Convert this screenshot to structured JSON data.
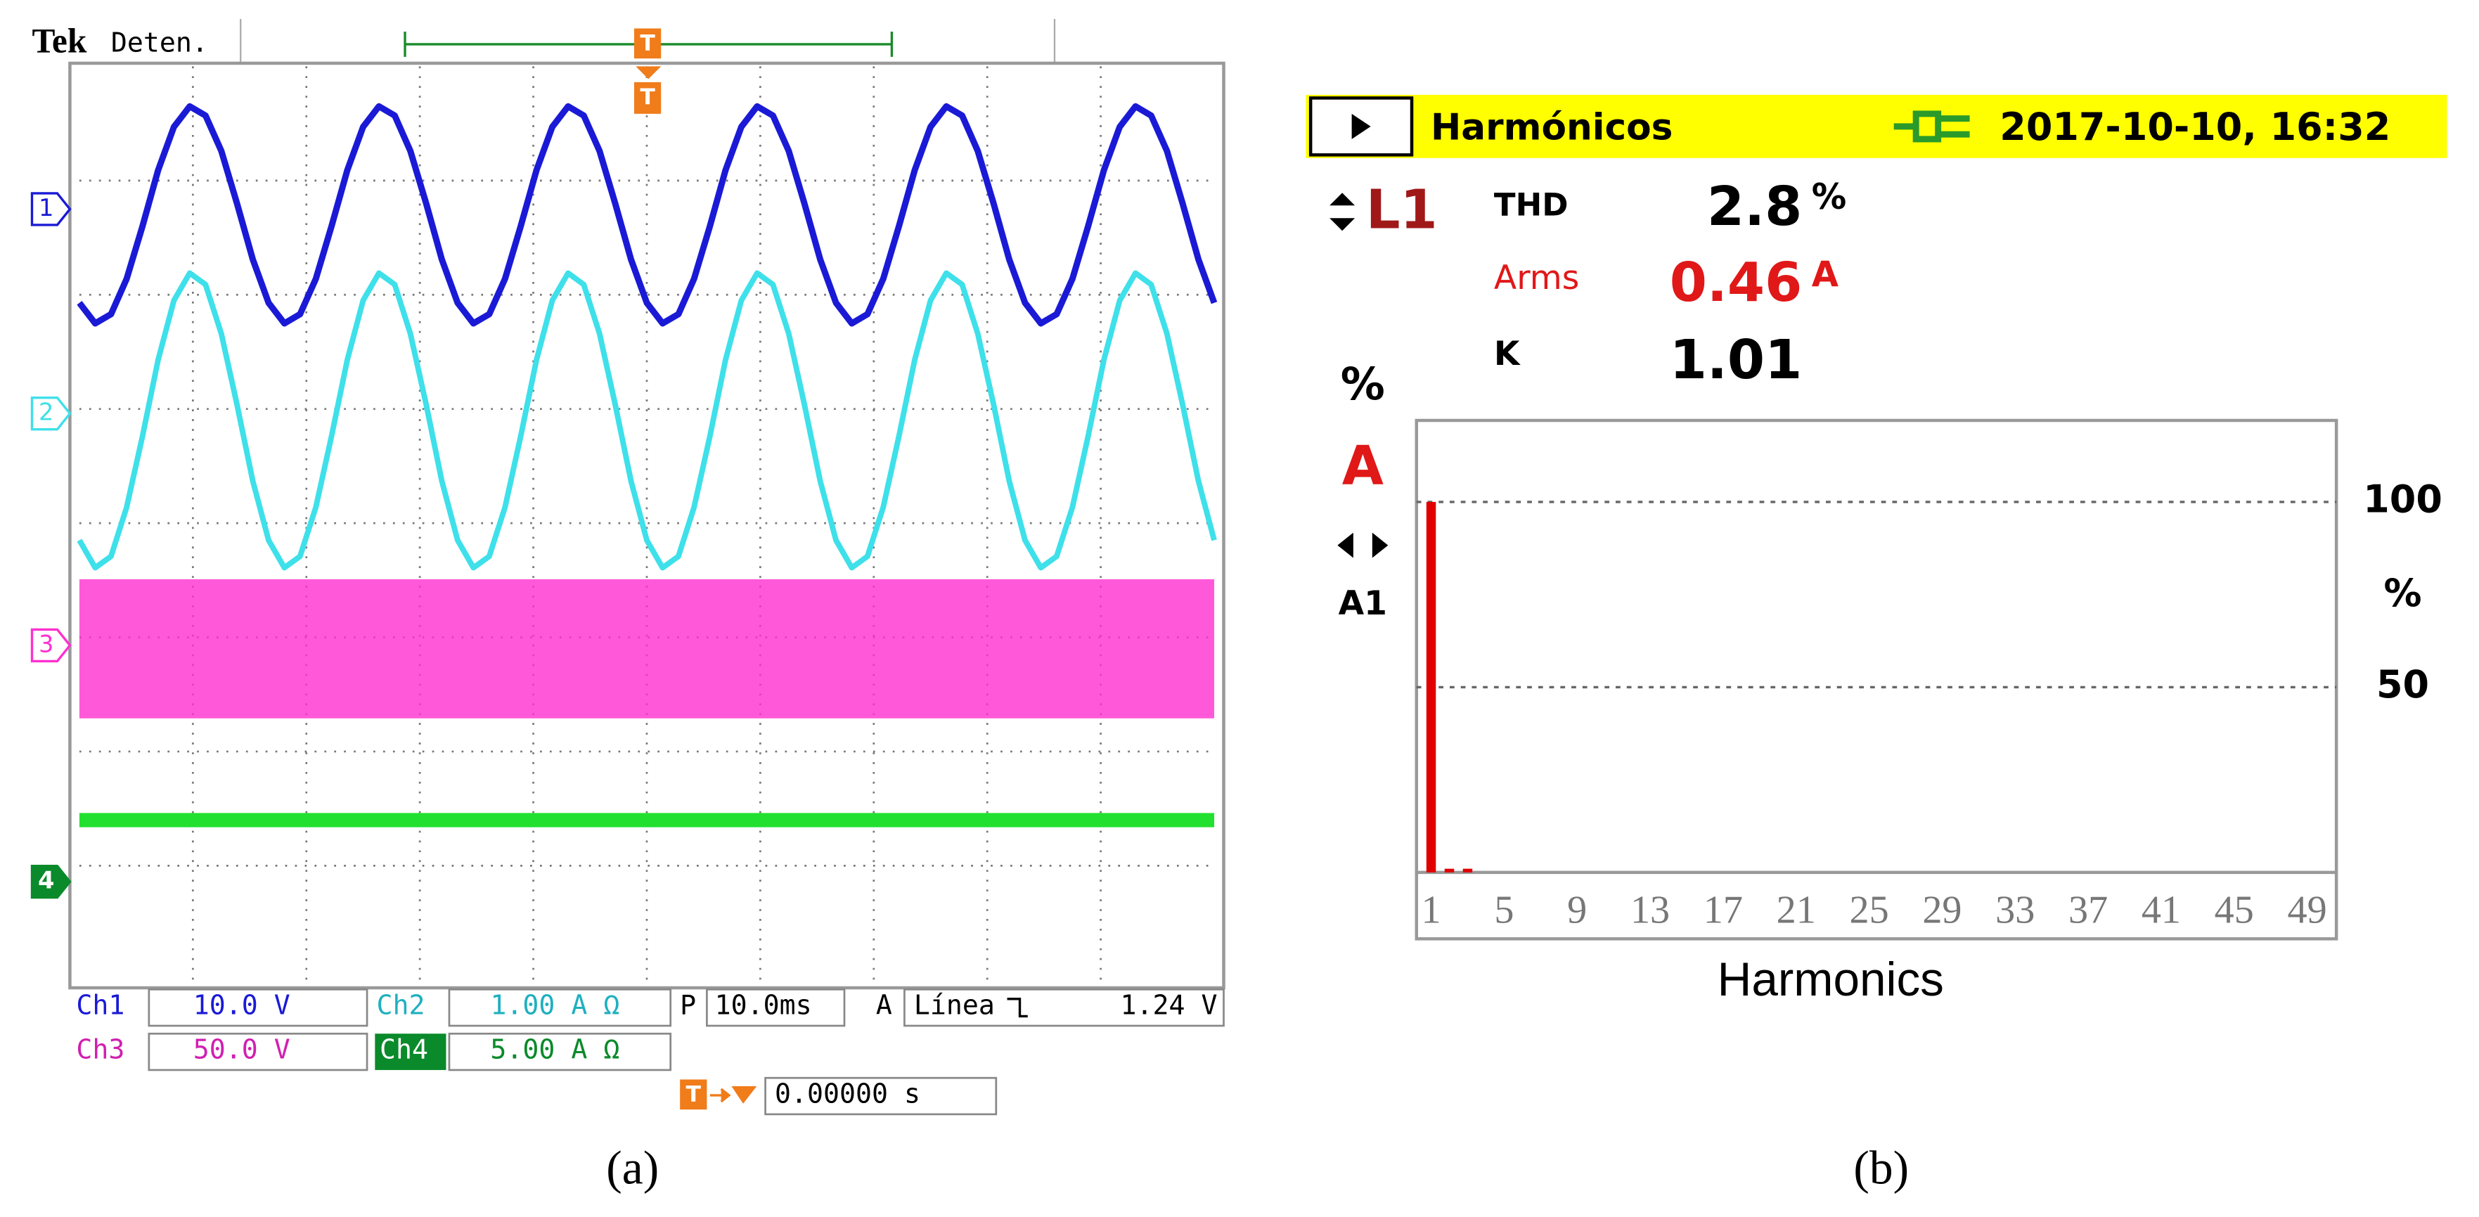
{
  "chart_data": [
    {
      "type": "line",
      "brand": "Tek",
      "status": "Deten.",
      "trigger_marker": "T",
      "x": [
        0,
        1.39,
        2.78,
        4.17,
        5.56,
        6.94,
        8.33,
        9.72,
        11.11,
        12.5,
        13.89,
        15.28,
        16.67,
        18.06,
        19.44,
        20.83,
        22.22,
        23.61,
        25,
        26.39,
        27.78,
        29.17,
        30.56,
        31.94,
        33.33,
        34.72,
        36.11,
        37.5,
        38.89,
        40.28,
        41.67,
        43.06,
        44.44,
        45.83,
        47.22,
        48.61,
        50,
        51.39,
        52.78,
        54.17,
        55.56,
        56.94,
        58.33,
        59.72,
        61.11,
        62.5,
        63.89,
        65.28,
        66.67,
        68.06,
        69.44,
        70.83,
        72.22,
        73.61,
        75,
        76.39,
        77.78,
        79.17,
        80.56,
        81.94,
        83.33,
        84.72,
        86.11,
        87.5,
        88.89,
        90.28,
        91.67,
        93.06,
        94.44,
        95.83,
        97.22,
        98.61,
        100
      ],
      "xlim": [
        0,
        100
      ],
      "ylim": [
        -4,
        4
      ],
      "series": [
        {
          "name": "Ch1",
          "marker": "1",
          "offset": 2.75,
          "scale": "10.0 V",
          "color": "#1a1ad6",
          "values": [
            1.93,
            1.75,
            1.83,
            2.14,
            2.6,
            3.09,
            3.47,
            3.65,
            3.57,
            3.26,
            2.8,
            2.31,
            1.93,
            1.75,
            1.83,
            2.14,
            2.6,
            3.09,
            3.47,
            3.65,
            3.57,
            3.26,
            2.8,
            2.31,
            1.93,
            1.75,
            1.83,
            2.14,
            2.6,
            3.09,
            3.47,
            3.65,
            3.57,
            3.26,
            2.8,
            2.31,
            1.93,
            1.75,
            1.83,
            2.14,
            2.6,
            3.09,
            3.47,
            3.65,
            3.57,
            3.26,
            2.8,
            2.31,
            1.93,
            1.75,
            1.83,
            2.14,
            2.6,
            3.09,
            3.47,
            3.65,
            3.57,
            3.26,
            2.8,
            2.31,
            1.93,
            1.75,
            1.83,
            2.14,
            2.6,
            3.09,
            3.47,
            3.65,
            3.57,
            3.26,
            2.8,
            2.31,
            1.93
          ]
        },
        {
          "name": "Ch2",
          "marker": "2",
          "offset": 0.96,
          "scale": "1.00 A Ω",
          "color": "#3ee0ea",
          "values": [
            -0.15,
            -0.39,
            -0.29,
            0.14,
            0.76,
            1.43,
            1.95,
            2.19,
            2.09,
            1.66,
            1.04,
            0.37,
            -0.15,
            -0.39,
            -0.29,
            0.14,
            0.76,
            1.43,
            1.95,
            2.19,
            2.09,
            1.66,
            1.04,
            0.37,
            -0.15,
            -0.39,
            -0.29,
            0.14,
            0.76,
            1.43,
            1.95,
            2.19,
            2.09,
            1.66,
            1.04,
            0.37,
            -0.15,
            -0.39,
            -0.29,
            0.14,
            0.76,
            1.43,
            1.95,
            2.19,
            2.09,
            1.66,
            1.04,
            0.37,
            -0.15,
            -0.39,
            -0.29,
            0.14,
            0.76,
            1.43,
            1.95,
            2.19,
            2.09,
            1.66,
            1.04,
            0.37,
            -0.15,
            -0.39,
            -0.29,
            0.14,
            0.76,
            1.43,
            1.95,
            2.19,
            2.09,
            1.66,
            1.04,
            0.37,
            -0.15
          ]
        },
        {
          "name": "Ch3",
          "marker": "3",
          "offset": -1.07,
          "scale": "50.0 V",
          "color": "#ff30d0",
          "x": [
            0,
            100
          ],
          "values": [
            -1.1,
            -1.1
          ]
        },
        {
          "name": "Ch4",
          "marker": "4",
          "offset": -3.14,
          "scale": "5.00 A Ω",
          "color": "#22e030",
          "x": [
            0,
            100
          ],
          "values": [
            -2.6,
            -2.6
          ]
        }
      ],
      "timebase_prefix": "P",
      "timebase": "10.0ms",
      "trigger_source": "A",
      "trigger_label": "Línea",
      "trigger_level": "1.24 V",
      "trigger_time": "0.00000 s",
      "caption": "(a)"
    },
    {
      "type": "bar",
      "title": "Harmónicos",
      "datetime": "2017-10-10, 16:32",
      "phase": "L1",
      "thd_label": "THD",
      "thd": 2.8,
      "thd_unit": "%",
      "arms_label": "Arms",
      "arms": 0.46,
      "arms_unit": "A",
      "k_label": "K",
      "k": 1.01,
      "unit_selector": [
        "%",
        "A"
      ],
      "cursor": "A1",
      "x": [
        1,
        2,
        3
      ],
      "values": [
        100,
        1,
        1
      ],
      "color": "#e00000",
      "xlim": [
        0.2,
        50.6
      ],
      "xticks": [
        1,
        5,
        9,
        13,
        17,
        21,
        25,
        29,
        33,
        37,
        41,
        45,
        49
      ],
      "ylim": [
        0,
        122
      ],
      "yticks": [
        50,
        100
      ],
      "y_unit": "%",
      "grid": true,
      "x_label": "Harmonics",
      "caption": "(b)"
    }
  ]
}
